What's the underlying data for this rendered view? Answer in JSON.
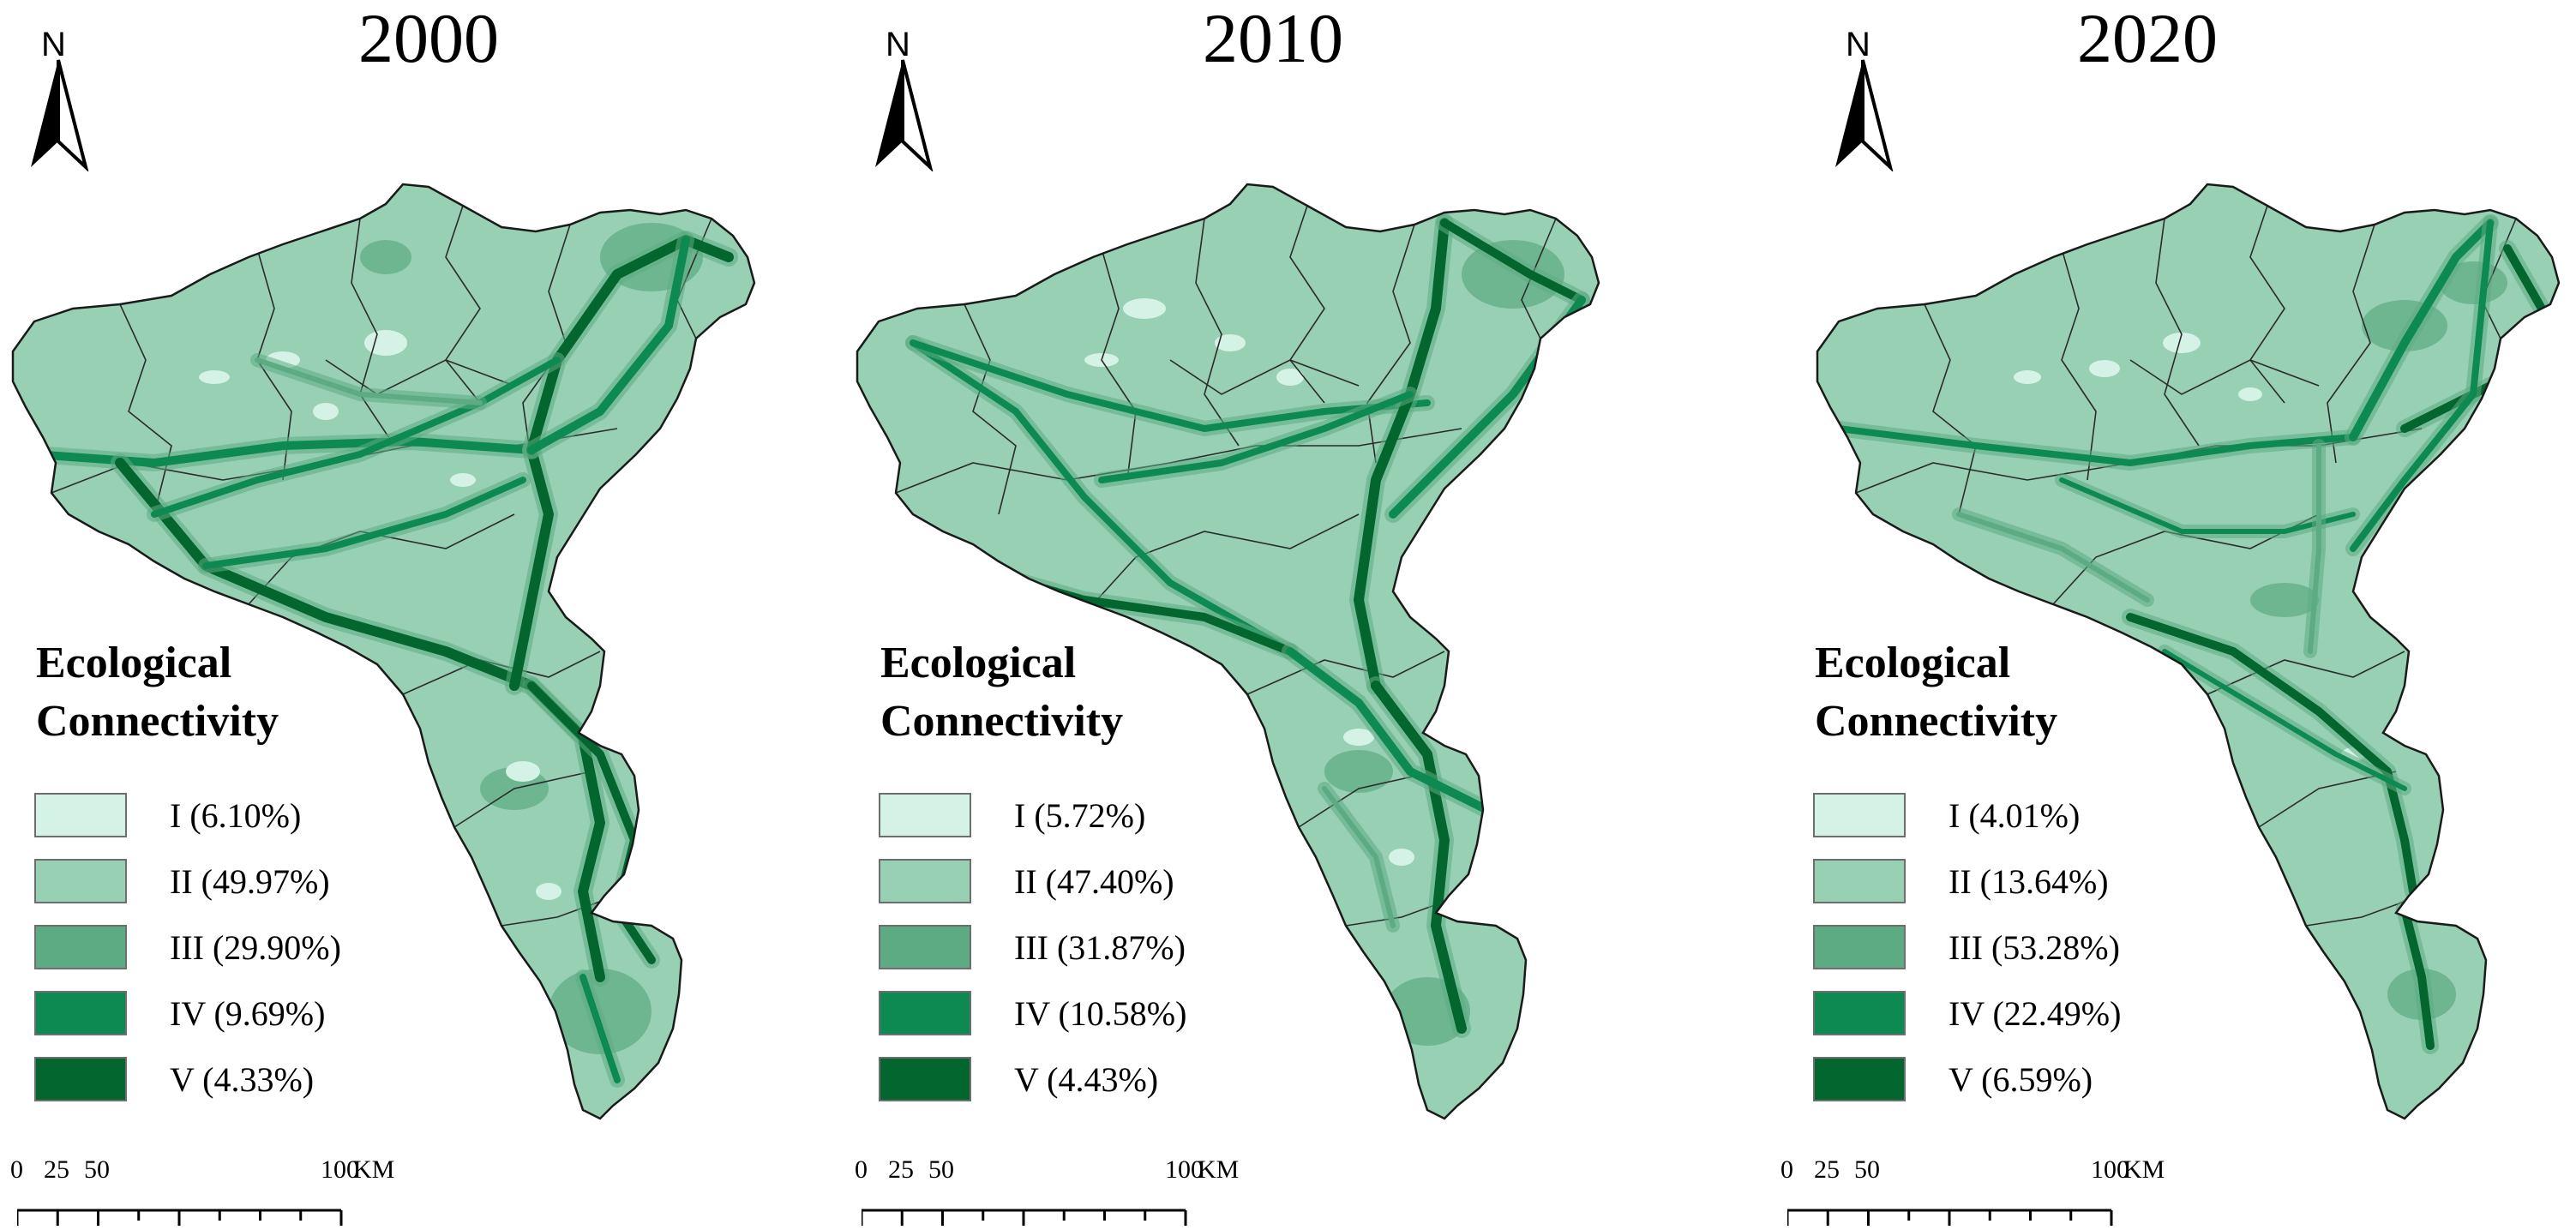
{
  "figure": {
    "north_label": "N",
    "legend_title_line1": "Ecological",
    "legend_title_line2": "Connectivity",
    "scale_labels": [
      "0",
      "25",
      "50",
      "100"
    ],
    "scale_unit": "KM",
    "class_colors": [
      "#d4f2e6",
      "#97d0b3",
      "#5cab82",
      "#0d8a52",
      "#03662e"
    ],
    "outline_color": "#1a1a1a"
  },
  "panels": [
    {
      "year": "2000",
      "legend": [
        {
          "label": "I (6.10%)"
        },
        {
          "label": "II (49.97%)"
        },
        {
          "label": "III (29.90%)"
        },
        {
          "label": "IV (9.69%)"
        },
        {
          "label": "V (4.33%)"
        }
      ]
    },
    {
      "year": "2010",
      "legend": [
        {
          "label": "I (5.72%)"
        },
        {
          "label": "II (47.40%)"
        },
        {
          "label": "III (31.87%)"
        },
        {
          "label": "IV (10.58%)"
        },
        {
          "label": "V (4.43%)"
        }
      ]
    },
    {
      "year": "2020",
      "legend": [
        {
          "label": "I (4.01%)"
        },
        {
          "label": "II (13.64%)"
        },
        {
          "label": "III (53.28%)"
        },
        {
          "label": "IV (22.49%)"
        },
        {
          "label": "V (6.59%)"
        }
      ]
    }
  ]
}
